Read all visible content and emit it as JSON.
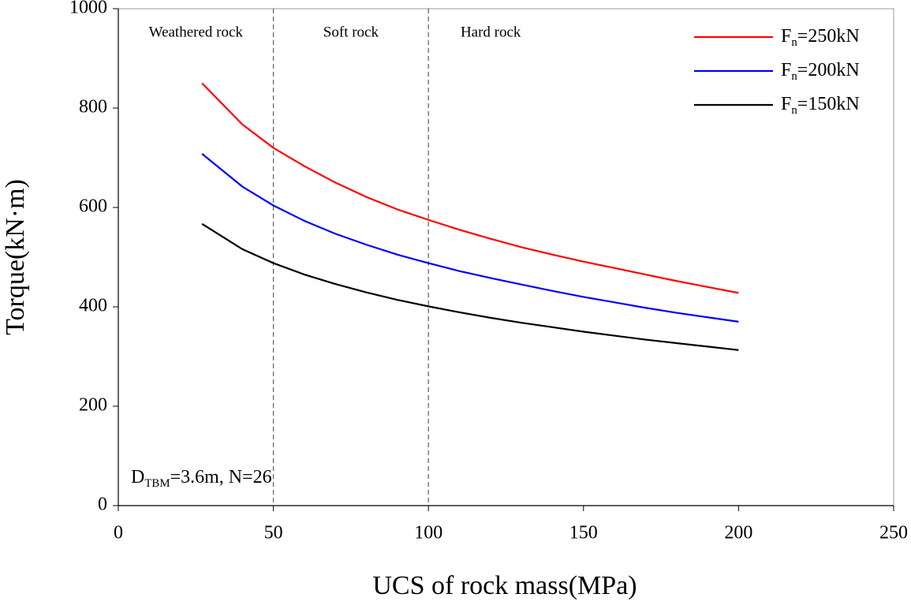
{
  "chart_data": {
    "type": "line",
    "x_label": "UCS of rock mass(MPa)",
    "y_label": "Torque(kN·m)",
    "x": [
      27,
      40,
      50,
      60,
      70,
      80,
      90,
      100,
      110,
      120,
      130,
      140,
      150,
      160,
      170,
      180,
      190,
      200
    ],
    "series": [
      {
        "name": "Fn=250kN",
        "color": "#ff0000",
        "values": [
          850,
          767,
          720,
          683,
          650,
          621,
          596,
          575,
          555,
          537,
          520,
          505,
          491,
          478,
          465,
          452,
          440,
          428
        ]
      },
      {
        "name": "Fn=200kN",
        "color": "#0000ff",
        "values": [
          708,
          642,
          604,
          573,
          547,
          525,
          505,
          488,
          472,
          458,
          445,
          432,
          420,
          409,
          398,
          388,
          379,
          370
        ]
      },
      {
        "name": "Fn=150kN",
        "color": "#000000",
        "values": [
          567,
          516,
          488,
          465,
          446,
          429,
          414,
          401,
          389,
          378,
          368,
          359,
          350,
          342,
          334,
          327,
          320,
          313
        ]
      }
    ],
    "xlim": [
      0,
      250
    ],
    "xticks": [
      0,
      50,
      100,
      150,
      200,
      250
    ],
    "ylim": [
      0,
      1000
    ],
    "yticks": [
      0,
      200,
      400,
      600,
      800,
      1000
    ],
    "boundaries": [
      50,
      100
    ],
    "regions": [
      "Weathered rock",
      "Soft rock",
      "Hard rock"
    ],
    "annotation": "DTBM=3.6m, N=26",
    "legend_position": "upper right",
    "grid": false
  }
}
